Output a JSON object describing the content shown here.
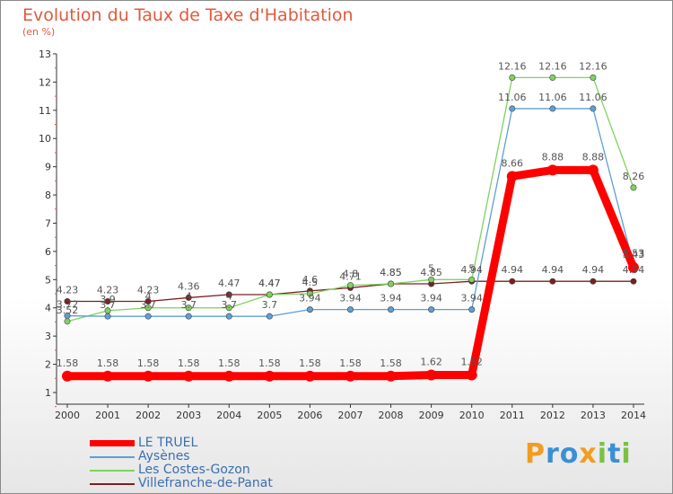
{
  "chart_data": {
    "type": "line",
    "title": "Evolution du Taux de Taxe d'Habitation",
    "subtitle": "(en %)",
    "x": [
      "2000",
      "2001",
      "2002",
      "2003",
      "2004",
      "2005",
      "2006",
      "2007",
      "2008",
      "2009",
      "2010",
      "2011",
      "2012",
      "2013",
      "2014"
    ],
    "ylim": [
      1,
      13
    ],
    "yticks": [
      1,
      2,
      3,
      4,
      5,
      6,
      7,
      8,
      9,
      10,
      11,
      12,
      13
    ],
    "grid": false,
    "legend": "bottom-left",
    "series": [
      {
        "name": "LE TRUEL",
        "color": "#ff0000",
        "values": [
          1.58,
          1.58,
          1.58,
          1.58,
          1.58,
          1.58,
          1.58,
          1.58,
          1.58,
          1.62,
          1.62,
          8.66,
          8.88,
          8.88,
          5.43
        ],
        "labels": [
          "1.58",
          "1.58",
          "1.58",
          "1.58",
          "1.58",
          "1.58",
          "1.58",
          "1.58",
          "1.58",
          "1.62",
          "1.62",
          "8.66",
          "8.88",
          "8.88",
          "5.43"
        ]
      },
      {
        "name": "Aysènes",
        "color": "#5f9fd3",
        "values": [
          3.72,
          3.7,
          3.7,
          3.7,
          3.7,
          3.7,
          3.94,
          3.94,
          3.94,
          3.94,
          3.94,
          11.06,
          11.06,
          11.06,
          5.53
        ],
        "labels": [
          "3.72",
          "3.7",
          "3.7",
          "3.7",
          "3.7",
          "3.7",
          "3.94",
          "3.94",
          "3.94",
          "3.94",
          "3.94",
          "11.06",
          "11.06",
          "11.06",
          "5.53"
        ]
      },
      {
        "name": "Les Costes-Gozon",
        "color": "#7fd35f",
        "values": [
          3.52,
          3.9,
          4.0,
          4.0,
          4.0,
          4.47,
          4.5,
          4.8,
          4.85,
          5.0,
          5.0,
          12.16,
          12.16,
          12.16,
          8.26
        ],
        "labels": [
          "3.52",
          "3.9",
          "4",
          "4",
          "4",
          "4.47",
          "4.5",
          "4.8",
          "4.85",
          "5",
          "5",
          "12.16",
          "12.16",
          "12.16",
          "8.26"
        ]
      },
      {
        "name": "Villefranche-de-Panat",
        "color": "#7a2020",
        "values": [
          4.23,
          4.23,
          4.23,
          4.36,
          4.47,
          4.47,
          4.6,
          4.71,
          4.85,
          4.85,
          4.94,
          4.94,
          4.94,
          4.94,
          4.94
        ],
        "labels": [
          "4.23",
          "4.23",
          "4.23",
          "4.36",
          "4.47",
          "4.47",
          "4.6",
          "4.71",
          "4.85",
          "4.85",
          "4.94",
          "4.94",
          "4.94",
          "4.94",
          "4.94"
        ]
      }
    ]
  },
  "logo": {
    "letters": [
      "P",
      "r",
      "o",
      "x",
      "i",
      "t",
      "i"
    ],
    "colors": [
      "#f39c1e",
      "#3a8fd6",
      "#3a8fd6",
      "#f39c1e",
      "#7ac143",
      "#3a8fd6",
      "#7ac143"
    ]
  }
}
